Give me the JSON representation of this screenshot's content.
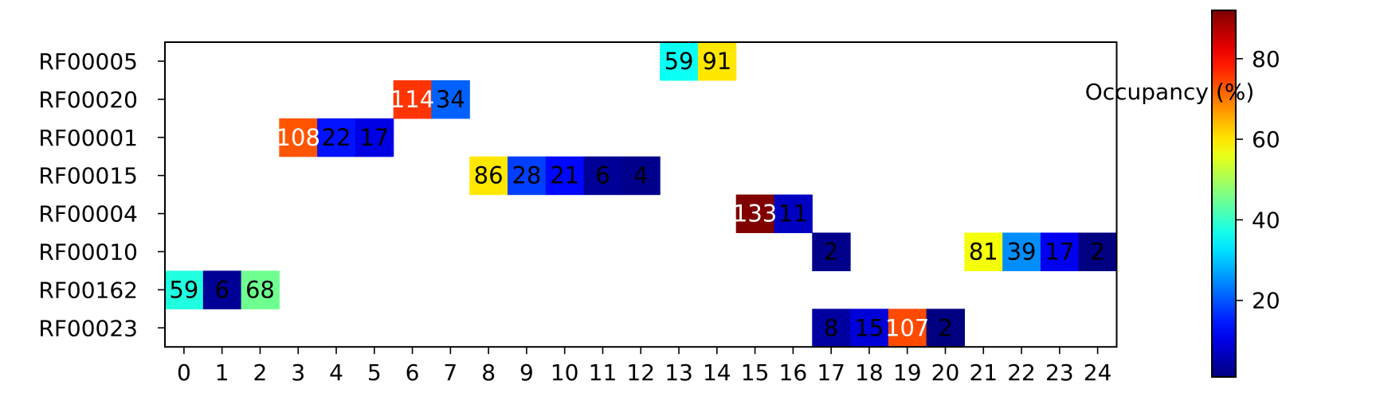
{
  "chart_data": {
    "type": "heatmap",
    "title": "",
    "xlabel": "",
    "ylabel": "",
    "x_ticks": [
      "0",
      "1",
      "2",
      "3",
      "4",
      "5",
      "6",
      "7",
      "8",
      "9",
      "10",
      "11",
      "12",
      "13",
      "14",
      "15",
      "16",
      "17",
      "18",
      "19",
      "20",
      "21",
      "22",
      "23",
      "24"
    ],
    "y_ticks": [
      "RF00005",
      "RF00020",
      "RF00001",
      "RF00015",
      "RF00004",
      "RF00010",
      "RF00162",
      "RF00023"
    ],
    "cells": [
      {
        "row": "RF00005",
        "col": 13,
        "label": "59",
        "occupancy": 36
      },
      {
        "row": "RF00005",
        "col": 14,
        "label": "91",
        "occupancy": 60
      },
      {
        "row": "RF00020",
        "col": 6,
        "label": "114",
        "occupancy": 76
      },
      {
        "row": "RF00020",
        "col": 7,
        "label": "34",
        "occupancy": 21
      },
      {
        "row": "RF00001",
        "col": 3,
        "label": "108",
        "occupancy": 73
      },
      {
        "row": "RF00001",
        "col": 4,
        "label": "22",
        "occupancy": 14
      },
      {
        "row": "RF00001",
        "col": 5,
        "label": "17",
        "occupancy": 10
      },
      {
        "row": "RF00015",
        "col": 8,
        "label": "86",
        "occupancy": 60
      },
      {
        "row": "RF00015",
        "col": 9,
        "label": "28",
        "occupancy": 18
      },
      {
        "row": "RF00015",
        "col": 10,
        "label": "21",
        "occupancy": 13
      },
      {
        "row": "RF00015",
        "col": 11,
        "label": "6",
        "occupancy": 3
      },
      {
        "row": "RF00015",
        "col": 12,
        "label": "4",
        "occupancy": 2
      },
      {
        "row": "RF00004",
        "col": 15,
        "label": "133",
        "occupancy": 92
      },
      {
        "row": "RF00004",
        "col": 16,
        "label": "11",
        "occupancy": 7
      },
      {
        "row": "RF00010",
        "col": 17,
        "label": "2",
        "occupancy": 2
      },
      {
        "row": "RF00010",
        "col": 21,
        "label": "81",
        "occupancy": 57
      },
      {
        "row": "RF00010",
        "col": 22,
        "label": "39",
        "occupancy": 25
      },
      {
        "row": "RF00010",
        "col": 23,
        "label": "17",
        "occupancy": 11
      },
      {
        "row": "RF00010",
        "col": 24,
        "label": "2",
        "occupancy": 1
      },
      {
        "row": "RF00162",
        "col": 0,
        "label": "59",
        "occupancy": 38
      },
      {
        "row": "RF00162",
        "col": 1,
        "label": "6",
        "occupancy": 3
      },
      {
        "row": "RF00162",
        "col": 2,
        "label": "68",
        "occupancy": 45
      },
      {
        "row": "RF00023",
        "col": 17,
        "label": "8",
        "occupancy": 4
      },
      {
        "row": "RF00023",
        "col": 18,
        "label": "15",
        "occupancy": 9
      },
      {
        "row": "RF00023",
        "col": 19,
        "label": "107",
        "occupancy": 74
      },
      {
        "row": "RF00023",
        "col": 20,
        "label": "2",
        "occupancy": 1
      }
    ],
    "colorbar": {
      "label": "Occupancy (%)",
      "colormap": "jet",
      "range": [
        1,
        92
      ],
      "ticks": [
        "20",
        "40",
        "60",
        "80"
      ]
    },
    "grid": false,
    "legend": "none"
  }
}
